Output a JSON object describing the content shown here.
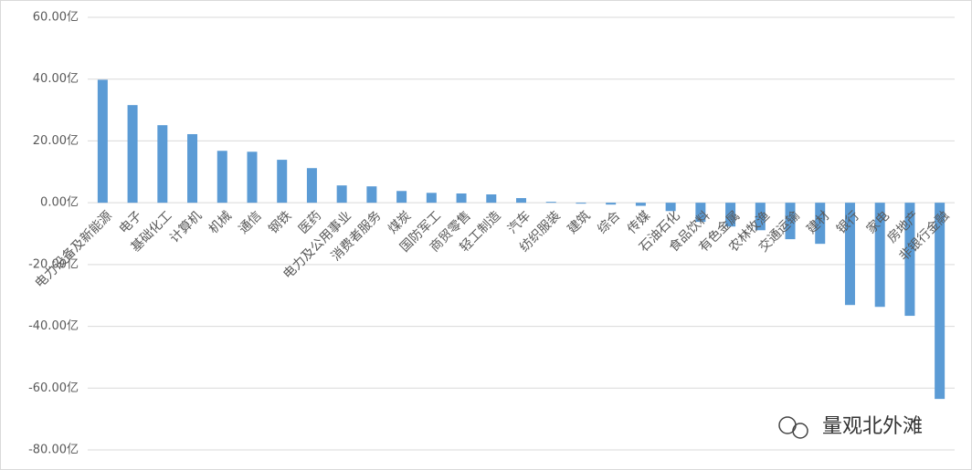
{
  "chart_data": {
    "type": "bar",
    "categories": [
      "电力设备及新能源",
      "电子",
      "基础化工",
      "计算机",
      "机械",
      "通信",
      "钢铁",
      "医药",
      "电力及公用事业",
      "消费者服务",
      "煤炭",
      "国防军工",
      "商贸零售",
      "轻工制造",
      "汽车",
      "纺织服装",
      "建筑",
      "综合",
      "传媒",
      "石油石化",
      "食品饮料",
      "有色金属",
      "农林牧渔",
      "交通运输",
      "建材",
      "银行",
      "家电",
      "房地产",
      "非银行金融"
    ],
    "values": [
      39.8,
      31.6,
      25.1,
      22.2,
      16.8,
      16.5,
      13.9,
      11.2,
      5.6,
      5.3,
      3.8,
      3.2,
      3.0,
      2.7,
      1.5,
      0.3,
      -0.3,
      -0.6,
      -1.0,
      -2.7,
      -6.2,
      -7.7,
      -8.9,
      -11.8,
      -13.3,
      -33.1,
      -33.7,
      -36.6,
      -63.5
    ],
    "color": "#5b9bd5",
    "ylim": [
      -80,
      60
    ],
    "yticks": [
      {
        "value": -80,
        "label": "-80.00亿"
      },
      {
        "value": -60,
        "label": "-60.00亿"
      },
      {
        "value": -40,
        "label": "-40.00亿"
      },
      {
        "value": -20,
        "label": "-20.00亿"
      },
      {
        "value": 0,
        "label": "0.00亿"
      },
      {
        "value": 20,
        "label": "20.00亿"
      },
      {
        "value": 40,
        "label": "40.00亿"
      },
      {
        "value": 60,
        "label": "60.00亿"
      }
    ],
    "grid": true,
    "watermark": "量观北外滩"
  }
}
